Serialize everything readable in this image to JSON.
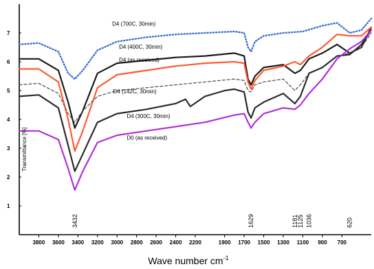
{
  "chart_data": {
    "type": "line",
    "xlabel": "Wave number cm",
    "xlabel_sup": "-1",
    "ylabel": "Transmittance [%]",
    "xlim": [
      4000,
      400
    ],
    "ylim": [
      0,
      8
    ],
    "x_ticks": [
      3800,
      3600,
      3400,
      3200,
      3000,
      2800,
      2600,
      2400,
      2200,
      1900,
      1700,
      1500,
      1300,
      1100,
      900,
      700
    ],
    "x_tick_labels": [
      "3800",
      "3600",
      "3400",
      "3200",
      "3000",
      "2800",
      "2600",
      "2400",
      "2200",
      "1900",
      "1700",
      "1500",
      "1300",
      "1100",
      "900",
      "700"
    ],
    "y_ticks": [
      1,
      2,
      3,
      4,
      5,
      6,
      7
    ],
    "y_tick_labels": [
      "1",
      "2",
      "3",
      "4",
      "5",
      "6",
      "7"
    ],
    "grid": false,
    "legend": "none",
    "peak_labels": [
      "3432",
      "1629",
      "1181",
      "1125",
      "1036",
      "620"
    ],
    "peak_positions": [
      3432,
      1629,
      1181,
      1125,
      1036,
      620
    ],
    "series": [
      {
        "name": "D4 (700C, 30min)",
        "color": "#3b6fd8",
        "dash": "dotted",
        "points": [
          [
            4000,
            6.6
          ],
          [
            3800,
            6.65
          ],
          [
            3600,
            6.35
          ],
          [
            3500,
            5.6
          ],
          [
            3432,
            5.4
          ],
          [
            3350,
            5.7
          ],
          [
            3200,
            6.4
          ],
          [
            3000,
            6.7
          ],
          [
            2700,
            6.85
          ],
          [
            2400,
            6.95
          ],
          [
            2100,
            7.0
          ],
          [
            1800,
            7.05
          ],
          [
            1700,
            7.0
          ],
          [
            1660,
            6.5
          ],
          [
            1629,
            6.35
          ],
          [
            1590,
            6.7
          ],
          [
            1500,
            6.9
          ],
          [
            1300,
            7.0
          ],
          [
            1100,
            7.05
          ],
          [
            900,
            7.25
          ],
          [
            750,
            7.35
          ],
          [
            620,
            7.0
          ],
          [
            500,
            7.1
          ],
          [
            400,
            7.5
          ]
        ]
      },
      {
        "name": "D4 (400C, 30min)",
        "color": "#1a1a1a",
        "dash": "solid",
        "points": [
          [
            4000,
            6.1
          ],
          [
            3800,
            6.1
          ],
          [
            3600,
            5.7
          ],
          [
            3500,
            4.6
          ],
          [
            3432,
            3.7
          ],
          [
            3350,
            4.3
          ],
          [
            3200,
            5.6
          ],
          [
            3000,
            5.95
          ],
          [
            2700,
            6.05
          ],
          [
            2400,
            6.15
          ],
          [
            2100,
            6.2
          ],
          [
            1800,
            6.3
          ],
          [
            1700,
            6.2
          ],
          [
            1660,
            5.4
          ],
          [
            1629,
            5.2
          ],
          [
            1590,
            5.5
          ],
          [
            1500,
            5.8
          ],
          [
            1300,
            5.9
          ],
          [
            1181,
            5.6
          ],
          [
            1125,
            5.7
          ],
          [
            1036,
            6.1
          ],
          [
            900,
            6.3
          ],
          [
            750,
            6.6
          ],
          [
            620,
            6.3
          ],
          [
            500,
            6.5
          ],
          [
            400,
            7.2
          ]
        ]
      },
      {
        "name": "D4 (as received)",
        "color": "#ff5a2e",
        "dash": "solid",
        "points": [
          [
            4000,
            5.75
          ],
          [
            3800,
            5.75
          ],
          [
            3600,
            5.3
          ],
          [
            3500,
            4.0
          ],
          [
            3432,
            2.9
          ],
          [
            3350,
            3.6
          ],
          [
            3200,
            5.1
          ],
          [
            3000,
            5.55
          ],
          [
            2700,
            5.7
          ],
          [
            2400,
            5.85
          ],
          [
            2100,
            5.95
          ],
          [
            1800,
            6.0
          ],
          [
            1700,
            5.95
          ],
          [
            1660,
            5.3
          ],
          [
            1629,
            5.05
          ],
          [
            1590,
            5.35
          ],
          [
            1500,
            5.7
          ],
          [
            1300,
            5.85
          ],
          [
            1181,
            6.0
          ],
          [
            1125,
            5.9
          ],
          [
            1036,
            6.2
          ],
          [
            900,
            6.5
          ],
          [
            750,
            6.95
          ],
          [
            620,
            6.9
          ],
          [
            500,
            6.9
          ],
          [
            400,
            7.2
          ]
        ]
      },
      {
        "name": "D4 (142C, 30min)",
        "color": "#555555",
        "dash": "dashed",
        "points": [
          [
            4000,
            5.2
          ],
          [
            3800,
            5.25
          ],
          [
            3600,
            4.9
          ],
          [
            3500,
            4.2
          ],
          [
            3432,
            3.9
          ],
          [
            3350,
            4.3
          ],
          [
            3200,
            4.8
          ],
          [
            3000,
            5.0
          ],
          [
            2700,
            5.1
          ],
          [
            2400,
            5.2
          ],
          [
            2100,
            5.3
          ],
          [
            1800,
            5.4
          ],
          [
            1700,
            5.35
          ],
          [
            1660,
            5.0
          ],
          [
            1629,
            4.95
          ],
          [
            1590,
            5.2
          ],
          [
            1500,
            5.3
          ],
          [
            1300,
            5.4
          ],
          [
            1181,
            5.0
          ],
          [
            1125,
            5.2
          ],
          [
            1036,
            5.6
          ],
          [
            900,
            5.8
          ],
          [
            750,
            6.2
          ],
          [
            620,
            6.3
          ],
          [
            500,
            6.5
          ],
          [
            400,
            7.0
          ]
        ]
      },
      {
        "name": "D4 (300C, 30min)",
        "color": "#2a2a2a",
        "dash": "solid",
        "points": [
          [
            4000,
            4.8
          ],
          [
            3800,
            4.85
          ],
          [
            3600,
            4.4
          ],
          [
            3500,
            3.1
          ],
          [
            3432,
            2.2
          ],
          [
            3350,
            2.8
          ],
          [
            3200,
            3.9
          ],
          [
            3000,
            4.2
          ],
          [
            2700,
            4.35
          ],
          [
            2400,
            4.55
          ],
          [
            2300,
            4.7
          ],
          [
            2250,
            4.45
          ],
          [
            2100,
            4.8
          ],
          [
            1900,
            5.0
          ],
          [
            1800,
            5.05
          ],
          [
            1700,
            4.95
          ],
          [
            1660,
            4.25
          ],
          [
            1629,
            4.05
          ],
          [
            1590,
            4.4
          ],
          [
            1500,
            4.6
          ],
          [
            1300,
            4.9
          ],
          [
            1181,
            4.55
          ],
          [
            1125,
            4.8
          ],
          [
            1036,
            5.6
          ],
          [
            900,
            5.8
          ],
          [
            750,
            6.2
          ],
          [
            620,
            6.25
          ],
          [
            500,
            6.6
          ],
          [
            400,
            7.1
          ]
        ]
      },
      {
        "name": "D0 (as received)",
        "color": "#b030d8",
        "dash": "solid",
        "points": [
          [
            4000,
            3.6
          ],
          [
            3800,
            3.6
          ],
          [
            3600,
            3.3
          ],
          [
            3500,
            2.3
          ],
          [
            3432,
            1.55
          ],
          [
            3350,
            2.2
          ],
          [
            3200,
            3.2
          ],
          [
            3000,
            3.45
          ],
          [
            2700,
            3.6
          ],
          [
            2400,
            3.75
          ],
          [
            2100,
            3.9
          ],
          [
            1800,
            4.15
          ],
          [
            1700,
            4.2
          ],
          [
            1660,
            3.9
          ],
          [
            1629,
            3.7
          ],
          [
            1590,
            3.9
          ],
          [
            1500,
            4.2
          ],
          [
            1300,
            4.4
          ],
          [
            1181,
            4.35
          ],
          [
            1125,
            4.5
          ],
          [
            1036,
            4.9
          ],
          [
            900,
            5.4
          ],
          [
            750,
            6.1
          ],
          [
            620,
            6.45
          ],
          [
            500,
            6.7
          ],
          [
            400,
            7.1
          ]
        ]
      }
    ],
    "annotations": [
      {
        "text": "D4 (700C, 30min)",
        "x": 3050,
        "y": 7.25
      },
      {
        "text": "D4 (400C, 30min)",
        "x": 2980,
        "y": 6.45
      },
      {
        "text": "D4 (as received)",
        "x": 2980,
        "y": 6.0
      },
      {
        "text": "D4 (142C, 30min)",
        "x": 3040,
        "y": 4.9
      },
      {
        "text": "D4 (300C, 30min)",
        "x": 2900,
        "y": 4.05
      },
      {
        "text": "D0 (as received)",
        "x": 2900,
        "y": 3.3
      }
    ]
  }
}
